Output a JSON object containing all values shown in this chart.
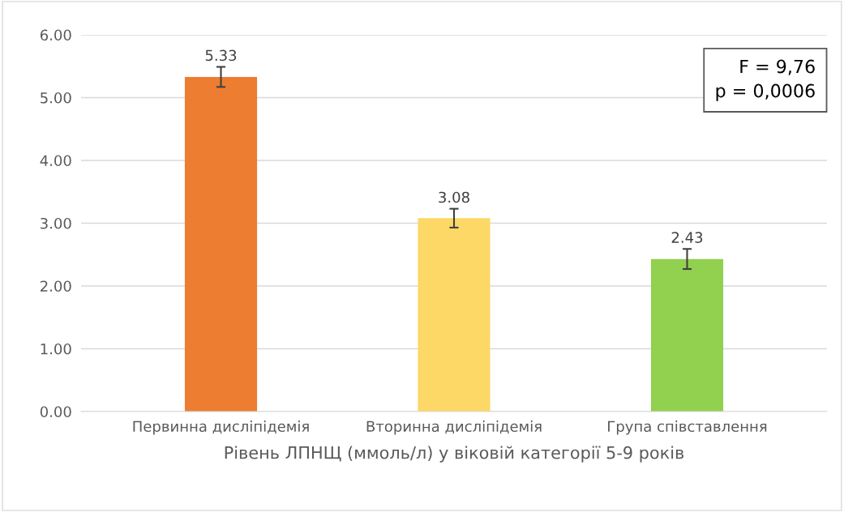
{
  "chart_data": {
    "type": "bar",
    "xlabel": "Рівень ЛПНЩ (ммоль/л) у віковій категорії 5-9 років",
    "categories": [
      "Первинна дисліпідемія",
      "Вторинна дисліпідемія",
      "Група співставлення"
    ],
    "values": [
      5.33,
      3.08,
      2.43
    ],
    "colors": [
      "#ed7d31",
      "#fdd866",
      "#92d050"
    ],
    "errors": [
      0.16,
      0.15,
      0.16
    ],
    "data_labels": true,
    "ylim": [
      0,
      6
    ],
    "yticks": [
      {
        "value": 0,
        "label": "0.00"
      },
      {
        "value": 1,
        "label": "1.00"
      },
      {
        "value": 2,
        "label": "2.00"
      },
      {
        "value": 3,
        "label": "3.00"
      },
      {
        "value": 4,
        "label": "4.00"
      },
      {
        "value": 5,
        "label": "5.00"
      },
      {
        "value": 6,
        "label": "6.00"
      }
    ],
    "grid": "y",
    "annotations": [
      "F = 9,76\np = 0,0006"
    ]
  }
}
